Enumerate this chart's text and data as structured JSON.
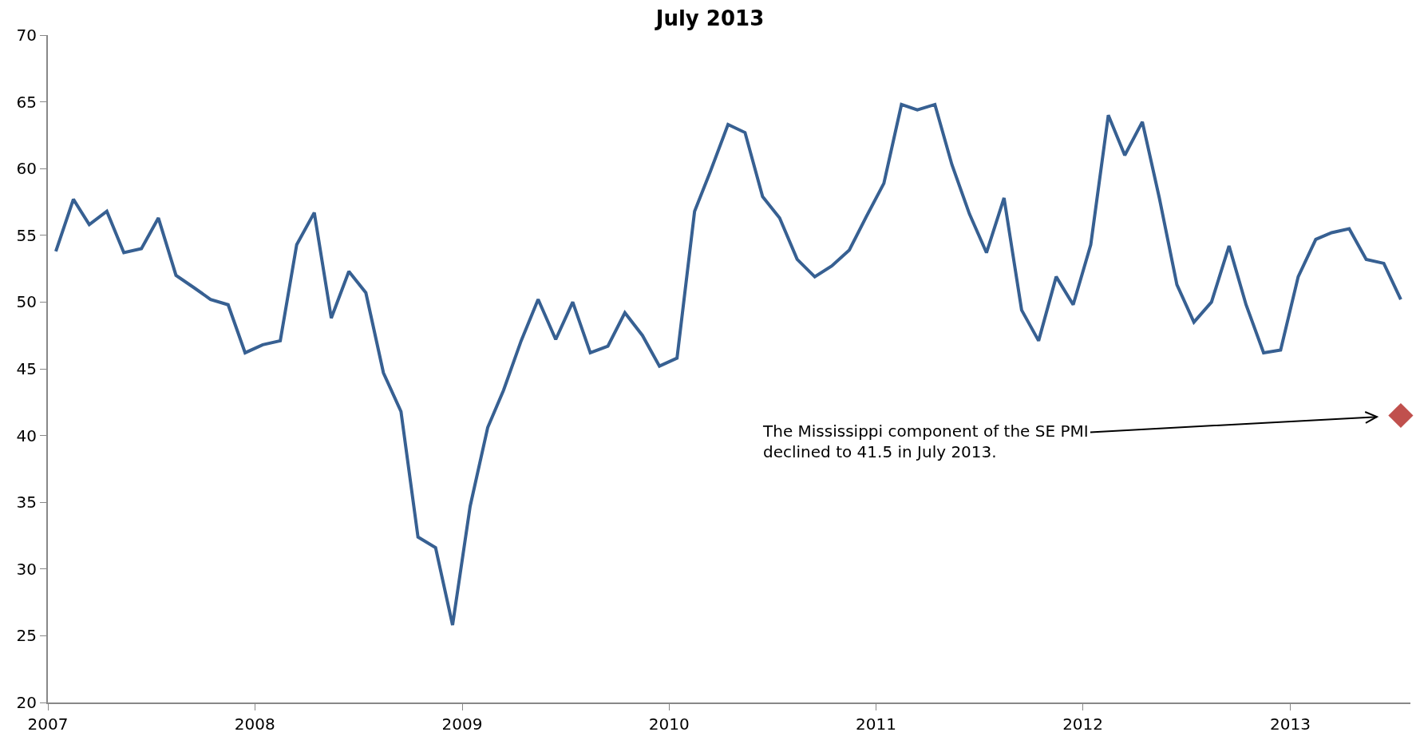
{
  "chart_data": {
    "type": "line",
    "title": "July 2013",
    "x": [
      "2007-01-15",
      "2007-02-15",
      "2007-03-15",
      "2007-04-15",
      "2007-05-15",
      "2007-06-15",
      "2007-07-15",
      "2007-08-15",
      "2007-09-15",
      "2007-10-15",
      "2007-11-15",
      "2007-12-15",
      "2008-01-15",
      "2008-02-15",
      "2008-03-15",
      "2008-04-15",
      "2008-05-15",
      "2008-06-15",
      "2008-07-15",
      "2008-08-15",
      "2008-09-15",
      "2008-10-15",
      "2008-11-15",
      "2008-12-15",
      "2009-01-15",
      "2009-02-15",
      "2009-03-15",
      "2009-04-15",
      "2009-05-15",
      "2009-06-15",
      "2009-07-15",
      "2009-08-15",
      "2009-09-15",
      "2009-10-15",
      "2009-11-15",
      "2009-12-15",
      "2010-01-15",
      "2010-02-15",
      "2010-03-15",
      "2010-04-15",
      "2010-05-15",
      "2010-06-15",
      "2010-07-15",
      "2010-08-15",
      "2010-09-15",
      "2010-10-15",
      "2010-11-15",
      "2010-12-15",
      "2011-01-15",
      "2011-02-15",
      "2011-03-15",
      "2011-04-15",
      "2011-05-15",
      "2011-06-15",
      "2011-07-15",
      "2011-08-15",
      "2011-09-15",
      "2011-10-15",
      "2011-11-15",
      "2011-12-15",
      "2012-01-15",
      "2012-02-15",
      "2012-03-15",
      "2012-04-15",
      "2012-05-15",
      "2012-06-15",
      "2012-07-15",
      "2012-08-15",
      "2012-09-15",
      "2012-10-15",
      "2012-11-15",
      "2012-12-15",
      "2013-01-15",
      "2013-02-15",
      "2013-03-15",
      "2013-04-15",
      "2013-05-15",
      "2013-06-15",
      "2013-07-15"
    ],
    "series": [
      {
        "color": "#376092",
        "marker": "none",
        "line_style": "solid",
        "values": [
          53.8,
          57.7,
          55.8,
          56.8,
          53.7,
          54.0,
          56.3,
          52.0,
          51.1,
          50.2,
          49.8,
          46.2,
          46.8,
          47.1,
          54.3,
          56.7,
          48.8,
          52.3,
          50.7,
          44.7,
          41.8,
          32.4,
          31.6,
          25.8,
          34.7,
          40.6,
          43.4,
          47.1,
          50.2,
          47.2,
          50.0,
          46.2,
          46.7,
          49.2,
          47.5,
          45.2,
          45.8,
          56.8,
          59.8,
          63.3,
          62.7,
          57.9,
          56.3,
          53.2,
          51.9,
          52.7,
          53.9,
          56.4,
          58.9,
          64.8,
          64.4,
          64.8,
          60.3,
          56.6,
          53.7,
          57.8,
          49.4,
          47.1,
          51.9,
          49.8,
          54.3,
          64.0,
          61.0,
          63.5,
          57.8,
          51.3,
          48.5,
          50.0,
          54.2,
          49.8,
          46.2,
          46.4,
          51.9,
          54.7,
          55.2,
          55.5,
          53.2,
          52.9,
          50.2
        ]
      },
      {
        "type": "scatter",
        "color": "#c0504d",
        "marker": "diamond",
        "x": [
          "2013-07-15"
        ],
        "values": [
          41.5
        ]
      }
    ],
    "xlim": [
      "2007-01-01",
      "2013-08-01"
    ],
    "xticks": [
      {
        "value": "2007-01-01",
        "label": "2007"
      },
      {
        "value": "2008-01-01",
        "label": "2008"
      },
      {
        "value": "2009-01-01",
        "label": "2009"
      },
      {
        "value": "2010-01-01",
        "label": "2010"
      },
      {
        "value": "2011-01-01",
        "label": "2011"
      },
      {
        "value": "2012-01-01",
        "label": "2012"
      },
      {
        "value": "2013-01-01",
        "label": "2013"
      }
    ],
    "ylim": [
      20,
      70
    ],
    "yticks": [
      20,
      25,
      30,
      35,
      40,
      45,
      50,
      55,
      60,
      65,
      70
    ],
    "grid": false,
    "annotations": [
      {
        "text": "The Mississippi component of the SE PMI\ndeclined to 41.5 in July 2013.",
        "x": "2013-07-15",
        "y": 41.5
      }
    ]
  }
}
